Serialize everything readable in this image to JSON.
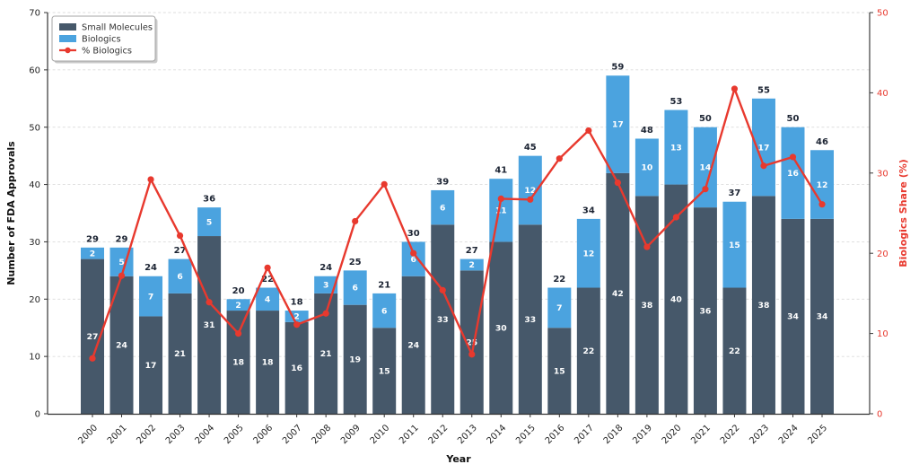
{
  "chart_data": {
    "type": "bar",
    "subtype": "stacked-bars-with-line-overlay",
    "title": "",
    "xlabel": "Year",
    "ylabel_left": "Number of FDA Approvals",
    "ylabel_right": "Biologics Share (%)",
    "categories": [
      "2000",
      "2001",
      "2002",
      "2003",
      "2004",
      "2005",
      "2006",
      "2007",
      "2008",
      "2009",
      "2010",
      "2011",
      "2012",
      "2013",
      "2014",
      "2015",
      "2016",
      "2017",
      "2018",
      "2019",
      "2020",
      "2021",
      "2022",
      "2023",
      "2024",
      "2025"
    ],
    "series": [
      {
        "name": "Small Molecules",
        "type": "bar",
        "stack": "approvals",
        "color": "#46586A",
        "values": [
          27,
          24,
          17,
          21,
          31,
          18,
          18,
          16,
          21,
          19,
          15,
          24,
          33,
          25,
          30,
          33,
          15,
          22,
          42,
          38,
          40,
          36,
          22,
          38,
          34,
          34
        ]
      },
      {
        "name": "Biologics",
        "type": "bar",
        "stack": "approvals",
        "color": "#4BA3DF",
        "values": [
          2,
          5,
          7,
          6,
          5,
          2,
          4,
          2,
          3,
          6,
          6,
          6,
          6,
          2,
          11,
          12,
          7,
          12,
          17,
          10,
          13,
          14,
          15,
          17,
          16,
          12
        ]
      },
      {
        "name": "% Biologics",
        "type": "line",
        "axis": "right",
        "color": "#E8392E",
        "values": [
          6.9,
          17.2,
          29.2,
          22.2,
          13.9,
          10.0,
          18.2,
          11.1,
          12.5,
          24.0,
          28.6,
          20.0,
          15.4,
          7.4,
          26.8,
          26.7,
          31.8,
          35.3,
          28.8,
          20.8,
          24.5,
          28.0,
          40.5,
          30.9,
          32.0,
          26.1
        ]
      }
    ],
    "totals": [
      29,
      29,
      24,
      27,
      36,
      20,
      22,
      18,
      24,
      25,
      21,
      30,
      39,
      27,
      41,
      45,
      22,
      34,
      59,
      48,
      53,
      50,
      37,
      55,
      50,
      46
    ],
    "ylim_left": [
      0,
      70
    ],
    "yticks_left": [
      0,
      10,
      20,
      30,
      40,
      50,
      60,
      70
    ],
    "ylim_right": [
      0,
      50
    ],
    "yticks_right": [
      0,
      10,
      20,
      30,
      40,
      50
    ],
    "grid": {
      "horizontal": true,
      "style": "dashed",
      "color": "#dcdcdc"
    },
    "legend": {
      "position": "upper-left",
      "items": [
        "Small Molecules",
        "Biologics",
        "% Biologics"
      ]
    },
    "label_colors": {
      "inside_bar": "#ffffff",
      "total": "#1C2433",
      "left_ticks": "#262626",
      "right_ticks": "#E8392E",
      "axis_left": "#111111"
    }
  }
}
